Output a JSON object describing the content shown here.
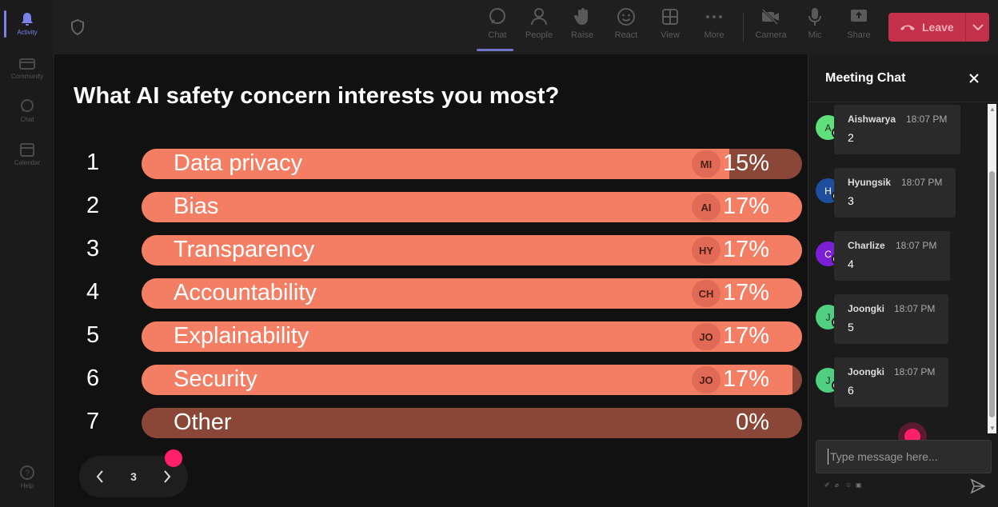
{
  "rail": {
    "items": [
      {
        "label": "Activity",
        "icon": "bell-icon",
        "active": true
      },
      {
        "label": "Community",
        "icon": "community-icon"
      },
      {
        "label": "Chat",
        "icon": "chat-icon"
      },
      {
        "label": "Calendar",
        "icon": "calendar-icon"
      }
    ],
    "help": {
      "label": "Help",
      "icon": "help-icon"
    }
  },
  "topbar": {
    "items": [
      {
        "label": "Chat",
        "icon": "chat-icon",
        "active": true
      },
      {
        "label": "People",
        "icon": "people-icon"
      },
      {
        "label": "Raise",
        "icon": "hand-icon"
      },
      {
        "label": "React",
        "icon": "smile-icon"
      },
      {
        "label": "View",
        "icon": "grid-icon"
      },
      {
        "label": "More",
        "icon": "more-icon"
      },
      {
        "label": "Camera",
        "icon": "camera-off-icon"
      },
      {
        "label": "Mic",
        "icon": "mic-icon"
      },
      {
        "label": "Share",
        "icon": "share-icon"
      }
    ],
    "leave_label": "Leave"
  },
  "poll": {
    "title": "What AI safety concern interests you most?",
    "options": [
      {
        "num": "1",
        "label": "Data privacy",
        "avatar": "MI",
        "pct": "15%",
        "value": 0.89
      },
      {
        "num": "2",
        "label": "Bias",
        "avatar": "AI",
        "pct": "17%",
        "value": 1.0
      },
      {
        "num": "3",
        "label": "Transparency",
        "avatar": "HY",
        "pct": "17%",
        "value": 1.0
      },
      {
        "num": "4",
        "label": "Accountability",
        "avatar": "CH",
        "pct": "17%",
        "value": 1.0
      },
      {
        "num": "5",
        "label": "Explainability",
        "avatar": "JO",
        "pct": "17%",
        "value": 1.0
      },
      {
        "num": "6",
        "label": "Security",
        "avatar": "JO",
        "pct": "17%",
        "value": 0.985
      },
      {
        "num": "7",
        "label": "Other",
        "avatar": "",
        "pct": "0%",
        "value": 0.0
      }
    ],
    "page": "3"
  },
  "chat": {
    "title": "Meeting Chat",
    "messages": [
      {
        "initial": "A",
        "name": "Aishwarya",
        "time": "18:07 PM",
        "text": "2",
        "color": "#5fe07a"
      },
      {
        "initial": "H",
        "name": "Hyungsik",
        "time": "18:07 PM",
        "text": "3",
        "color": "#1d4e9e"
      },
      {
        "initial": "C",
        "name": "Charlize",
        "time": "18:07 PM",
        "text": "4",
        "color": "#7a1fd6"
      },
      {
        "initial": "J",
        "name": "Joongki",
        "time": "18:07 PM",
        "text": "5",
        "color": "#4fcf7f"
      },
      {
        "initial": "J",
        "name": "Joongki",
        "time": "18:07 PM",
        "text": "6",
        "color": "#4fcf7f"
      }
    ],
    "input_placeholder": "Type message here..."
  },
  "colors": {
    "accent": "#7b83eb",
    "bar_fill": "#f47e64",
    "bar_track": "#8a4636",
    "leave": "#c4314b",
    "pointer_dot": "#ff1f6a"
  }
}
